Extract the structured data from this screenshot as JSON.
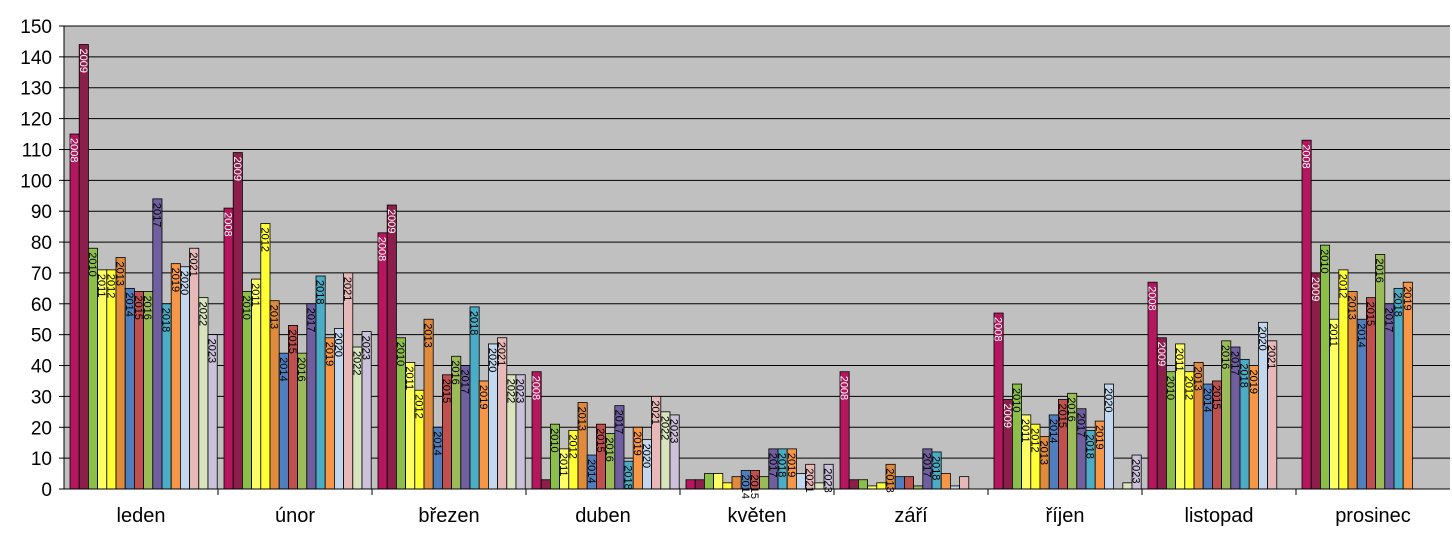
{
  "chart_data": {
    "type": "bar",
    "categories": [
      "leden",
      "únor",
      "březen",
      "duben",
      "květen",
      "září",
      "říjen",
      "listopad",
      "prosinec"
    ],
    "ylim": [
      0,
      150
    ],
    "yticks": [
      0,
      10,
      20,
      30,
      40,
      50,
      60,
      70,
      80,
      90,
      100,
      110,
      120,
      130,
      140,
      150
    ],
    "grid": true,
    "plot_background": "#c0c0c0",
    "series": [
      {
        "name": "2008",
        "color": "#b5175e",
        "values": [
          115,
          91,
          83,
          38,
          3,
          38,
          57,
          67,
          113
        ]
      },
      {
        "name": "2009",
        "color": "#8b1e4a",
        "values": [
          144,
          109,
          92,
          3,
          3,
          3,
          29,
          49,
          70
        ]
      },
      {
        "name": "2010",
        "color": "#8cbe4a",
        "values": [
          78,
          64,
          49,
          21,
          5,
          3,
          34,
          38,
          79
        ]
      },
      {
        "name": "2011",
        "color": "#ffff66",
        "values": [
          71,
          68,
          41,
          13,
          5,
          1,
          24,
          47,
          55
        ]
      },
      {
        "name": "2012",
        "color": "#ffff33",
        "values": [
          71,
          86,
          32,
          19,
          2,
          2,
          21,
          38,
          71
        ]
      },
      {
        "name": "2013",
        "color": "#e08a3c",
        "values": [
          75,
          61,
          55,
          28,
          4,
          8,
          17,
          41,
          64
        ]
      },
      {
        "name": "2014",
        "color": "#4f7fbf",
        "values": [
          65,
          44,
          20,
          11,
          6,
          4,
          24,
          34,
          55
        ]
      },
      {
        "name": "2015",
        "color": "#c0504d",
        "values": [
          64,
          53,
          37,
          21,
          6,
          4,
          29,
          35,
          62
        ]
      },
      {
        "name": "2016",
        "color": "#9bbb59",
        "values": [
          64,
          44,
          43,
          18,
          4,
          1,
          31,
          48,
          76
        ]
      },
      {
        "name": "2017",
        "color": "#6f5f9f",
        "values": [
          94,
          60,
          40,
          27,
          13,
          13,
          26,
          46,
          60
        ]
      },
      {
        "name": "2018",
        "color": "#4bacc6",
        "values": [
          60,
          69,
          59,
          9,
          13,
          12,
          19,
          42,
          65
        ]
      },
      {
        "name": "2019",
        "color": "#f79646",
        "values": [
          73,
          49,
          35,
          20,
          13,
          5,
          22,
          40,
          67
        ]
      },
      {
        "name": "2020",
        "color": "#c3d7ee",
        "values": [
          72,
          52,
          47,
          16,
          5,
          1,
          34,
          54,
          0
        ]
      },
      {
        "name": "2021",
        "color": "#e6b9b8",
        "values": [
          78,
          70,
          49,
          30,
          8,
          4,
          0,
          48,
          0
        ]
      },
      {
        "name": "2022",
        "color": "#d7e4bd",
        "values": [
          62,
          46,
          37,
          25,
          2,
          0,
          2,
          0,
          0
        ]
      },
      {
        "name": "2023",
        "color": "#ccc1da",
        "values": [
          50,
          51,
          37,
          24,
          8,
          0,
          11,
          0,
          0
        ]
      }
    ]
  }
}
